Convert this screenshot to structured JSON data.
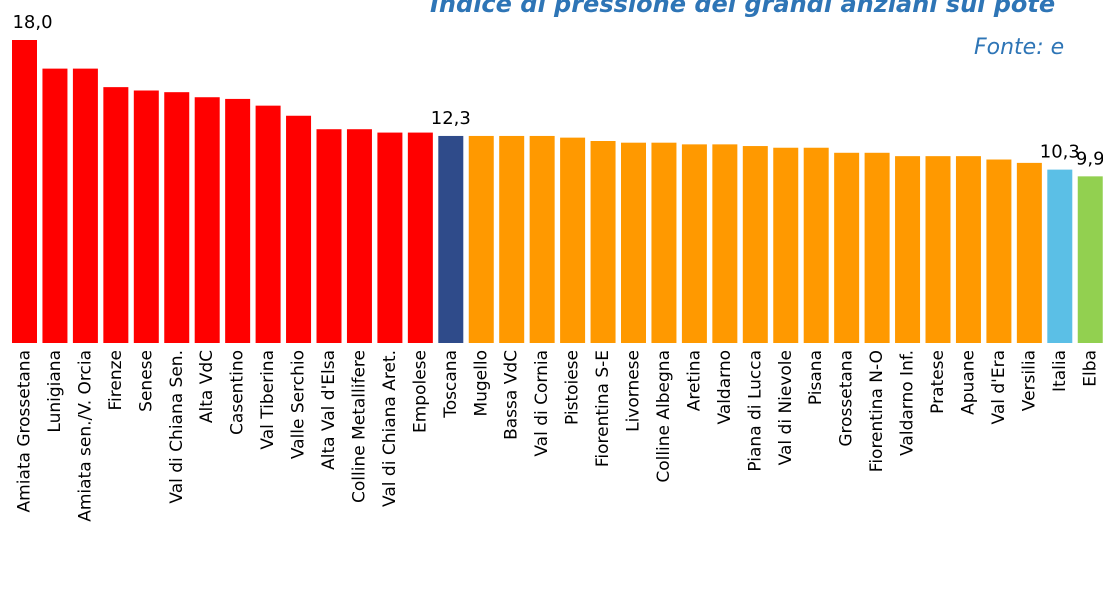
{
  "chart_data": {
    "type": "bar",
    "title": "Indice di pressione dei grandi anziani sul pote",
    "subtitle": "Fonte: e",
    "categories": [
      "Amiata Grossetana",
      "Lunigiana",
      "Amiata sen./V. Orcia",
      "Firenze",
      "Senese",
      "Val di Chiana Sen.",
      "Alta VdC",
      "Casentino",
      "Val Tiberina",
      "Valle Serchio",
      "Alta Val d'Elsa",
      "Colline Metallifere",
      "Val di Chiana Aret.",
      "Empolese",
      "Toscana",
      "Mugello",
      "Bassa VdC",
      "Val di Cornia",
      "Pistoiese",
      "Fiorentina S-E",
      "Livornese",
      "Colline Albegna",
      "Aretina",
      "Valdarno",
      "Piana di Lucca",
      "Val di Nievole",
      "Pisana",
      "Grossetana",
      "Fiorentina N-O",
      "Valdarno Inf.",
      "Pratese",
      "Apuane",
      "Val d'Era",
      "Versilia",
      "Italia",
      "Elba"
    ],
    "values": [
      18.0,
      16.3,
      16.3,
      15.2,
      15.0,
      14.9,
      14.6,
      14.5,
      14.1,
      13.5,
      12.7,
      12.7,
      12.5,
      12.5,
      12.3,
      12.3,
      12.3,
      12.3,
      12.2,
      12.0,
      11.9,
      11.9,
      11.8,
      11.8,
      11.7,
      11.6,
      11.6,
      11.3,
      11.3,
      11.1,
      11.1,
      11.1,
      10.9,
      10.7,
      10.3,
      9.9
    ],
    "value_labels": [
      "18,0",
      null,
      null,
      null,
      null,
      null,
      null,
      null,
      null,
      null,
      null,
      null,
      null,
      null,
      "12,3",
      null,
      null,
      null,
      null,
      null,
      null,
      null,
      null,
      null,
      null,
      null,
      null,
      null,
      null,
      null,
      null,
      null,
      null,
      null,
      "10,3",
      "9,9"
    ],
    "colors": [
      "#ff0000",
      "#ff0000",
      "#ff0000",
      "#ff0000",
      "#ff0000",
      "#ff0000",
      "#ff0000",
      "#ff0000",
      "#ff0000",
      "#ff0000",
      "#ff0000",
      "#ff0000",
      "#ff0000",
      "#ff0000",
      "#2f4b8a",
      "#ff9900",
      "#ff9900",
      "#ff9900",
      "#ff9900",
      "#ff9900",
      "#ff9900",
      "#ff9900",
      "#ff9900",
      "#ff9900",
      "#ff9900",
      "#ff9900",
      "#ff9900",
      "#ff9900",
      "#ff9900",
      "#ff9900",
      "#ff9900",
      "#ff9900",
      "#ff9900",
      "#ff9900",
      "#5bbfe6",
      "#92d050"
    ],
    "ylim": [
      0,
      18
    ]
  }
}
